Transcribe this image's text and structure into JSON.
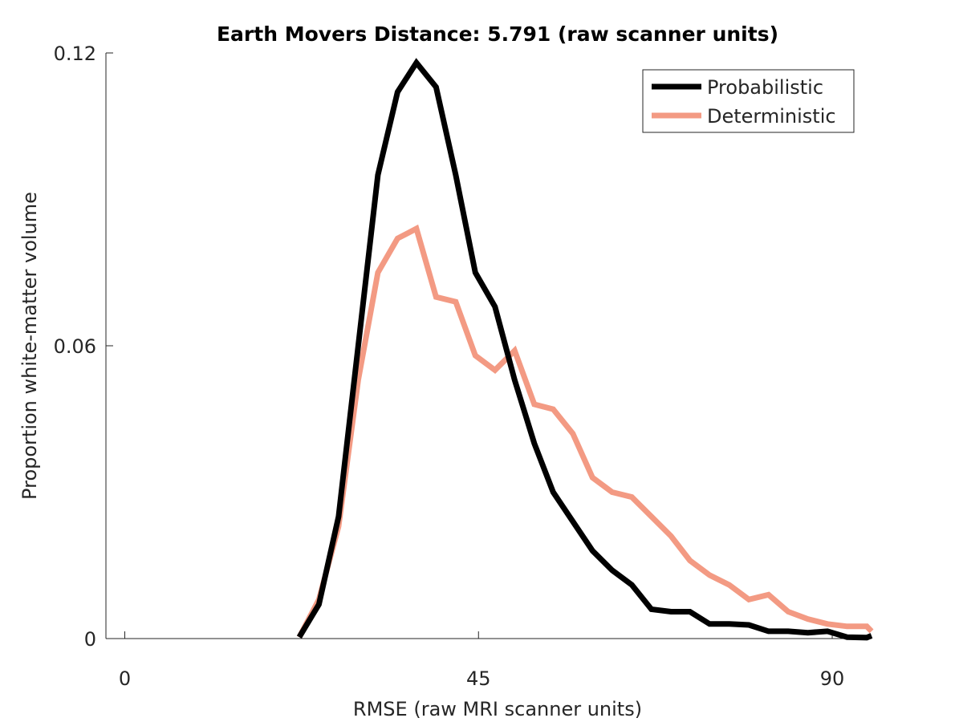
{
  "chart_data": {
    "type": "line",
    "title": "Earth Movers Distance: 5.791 (raw scanner units)",
    "xlabel": "RMSE (raw MRI scanner units)",
    "ylabel": "Proportion white-matter volume",
    "xlim": [
      -2.4,
      95
    ],
    "ylim": [
      0,
      0.12
    ],
    "xticks": [
      0,
      45,
      90
    ],
    "xtick_labels": [
      "0",
      "45",
      "90"
    ],
    "yticks": [
      0,
      0.06,
      0.12
    ],
    "ytick_labels": [
      "0",
      "0.06",
      "0.12"
    ],
    "grid": false,
    "legend_position": "top-right",
    "series": [
      {
        "name": "Probabilistic",
        "color": "#000000",
        "x": [
          22.2,
          24.7,
          27.2,
          29.7,
          32.2,
          34.7,
          37.1,
          39.6,
          42.1,
          44.6,
          47.1,
          49.6,
          52.1,
          54.5,
          57.0,
          59.5,
          62.0,
          64.5,
          67.0,
          69.5,
          71.9,
          74.4,
          76.9,
          79.4,
          81.9,
          84.4,
          86.9,
          89.4,
          91.9,
          94.4,
          95.0
        ],
        "values": [
          0.0003,
          0.007,
          0.025,
          0.06,
          0.095,
          0.112,
          0.118,
          0.113,
          0.095,
          0.075,
          0.068,
          0.053,
          0.04,
          0.03,
          0.024,
          0.018,
          0.014,
          0.011,
          0.006,
          0.0055,
          0.0055,
          0.003,
          0.003,
          0.0028,
          0.0015,
          0.0015,
          0.0012,
          0.0015,
          0.0003,
          0.0002,
          0.0006
        ]
      },
      {
        "name": "Deterministic",
        "color": "#F39A83",
        "x": [
          22.2,
          24.7,
          27.2,
          29.7,
          32.2,
          34.7,
          37.1,
          39.6,
          42.1,
          44.6,
          47.1,
          49.6,
          52.1,
          54.5,
          57.0,
          59.5,
          62.0,
          64.5,
          67.0,
          69.5,
          71.9,
          74.4,
          76.9,
          79.4,
          81.9,
          84.4,
          86.9,
          89.4,
          91.9,
          94.4,
          95.0
        ],
        "values": [
          0.0003,
          0.008,
          0.023,
          0.053,
          0.075,
          0.082,
          0.084,
          0.07,
          0.069,
          0.058,
          0.055,
          0.059,
          0.048,
          0.047,
          0.042,
          0.033,
          0.03,
          0.029,
          0.025,
          0.021,
          0.016,
          0.013,
          0.011,
          0.008,
          0.009,
          0.0055,
          0.004,
          0.003,
          0.0025,
          0.0025,
          0.0015
        ]
      }
    ]
  }
}
